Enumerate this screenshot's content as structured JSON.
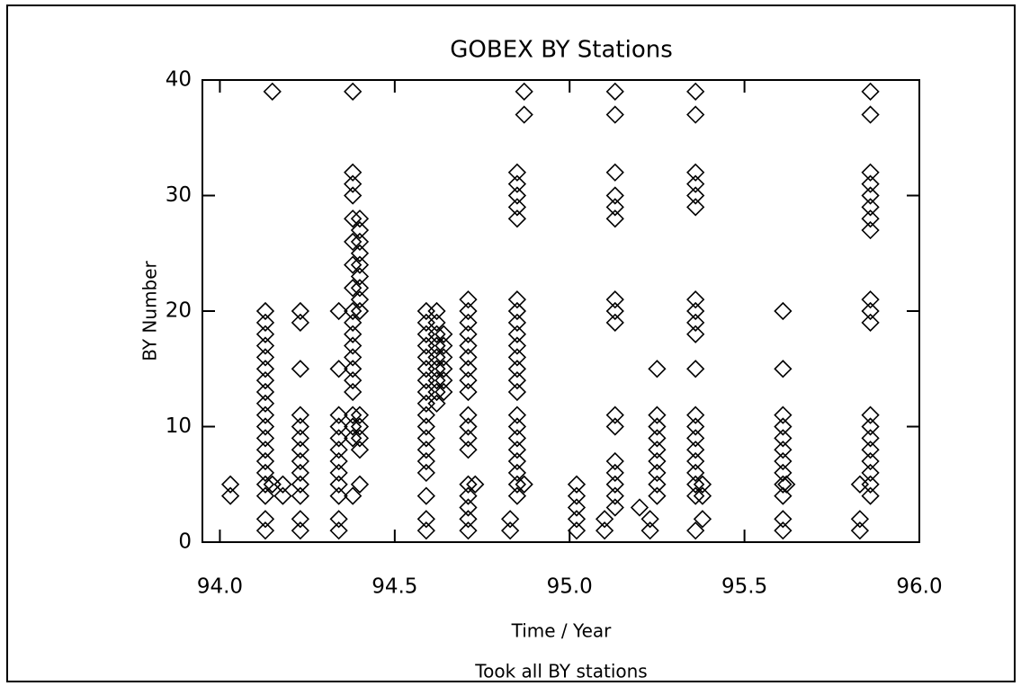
{
  "chart_data": {
    "type": "scatter",
    "title": "GOBEX BY Stations",
    "xlabel": "Time / Year",
    "ylabel": "BY Number",
    "footnote": "Took all BY stations",
    "x": [
      94.03,
      94.03,
      94.13,
      94.13,
      94.13,
      94.13,
      94.13,
      94.13,
      94.13,
      94.13,
      94.13,
      94.13,
      94.13,
      94.13,
      94.13,
      94.13,
      94.13,
      94.13,
      94.13,
      94.13,
      94.13,
      94.15,
      94.15,
      94.18,
      94.18,
      94.23,
      94.23,
      94.23,
      94.23,
      94.23,
      94.23,
      94.23,
      94.23,
      94.23,
      94.23,
      94.23,
      94.23,
      94.23,
      94.34,
      94.34,
      94.34,
      94.34,
      94.34,
      94.34,
      94.34,
      94.34,
      94.34,
      94.34,
      94.34,
      94.34,
      94.38,
      94.38,
      94.38,
      94.38,
      94.38,
      94.38,
      94.38,
      94.38,
      94.38,
      94.38,
      94.38,
      94.38,
      94.38,
      94.38,
      94.38,
      94.38,
      94.38,
      94.38,
      94.38,
      94.38,
      94.4,
      94.4,
      94.4,
      94.4,
      94.4,
      94.4,
      94.4,
      94.4,
      94.4,
      94.4,
      94.4,
      94.4,
      94.4,
      94.4,
      94.59,
      94.59,
      94.59,
      94.59,
      94.59,
      94.59,
      94.59,
      94.59,
      94.59,
      94.59,
      94.59,
      94.59,
      94.59,
      94.59,
      94.59,
      94.59,
      94.59,
      94.59,
      94.62,
      94.62,
      94.62,
      94.62,
      94.62,
      94.62,
      94.62,
      94.62,
      94.62,
      94.64,
      94.64,
      94.64,
      94.64,
      94.64,
      94.64,
      94.71,
      94.71,
      94.71,
      94.71,
      94.71,
      94.71,
      94.71,
      94.71,
      94.71,
      94.71,
      94.71,
      94.71,
      94.71,
      94.71,
      94.71,
      94.71,
      94.71,
      94.71,
      94.73,
      94.83,
      94.83,
      94.85,
      94.85,
      94.85,
      94.85,
      94.85,
      94.85,
      94.85,
      94.85,
      94.85,
      94.85,
      94.85,
      94.85,
      94.85,
      94.85,
      94.85,
      94.85,
      94.85,
      94.85,
      94.85,
      94.85,
      94.85,
      94.85,
      94.87,
      94.87,
      94.87,
      95.02,
      95.02,
      95.02,
      95.02,
      95.02,
      95.1,
      95.1,
      95.13,
      95.13,
      95.13,
      95.13,
      95.13,
      95.13,
      95.13,
      95.13,
      95.13,
      95.13,
      95.13,
      95.13,
      95.13,
      95.13,
      95.13,
      95.13,
      95.2,
      95.23,
      95.23,
      95.25,
      95.25,
      95.25,
      95.25,
      95.25,
      95.25,
      95.25,
      95.25,
      95.25,
      95.36,
      95.36,
      95.36,
      95.36,
      95.36,
      95.36,
      95.36,
      95.36,
      95.36,
      95.36,
      95.36,
      95.36,
      95.36,
      95.36,
      95.36,
      95.36,
      95.36,
      95.36,
      95.36,
      95.36,
      95.38,
      95.38,
      95.38,
      95.61,
      95.61,
      95.61,
      95.61,
      95.61,
      95.61,
      95.61,
      95.61,
      95.61,
      95.61,
      95.61,
      95.61,
      95.62,
      95.83,
      95.83,
      95.83,
      95.86,
      95.86,
      95.86,
      95.86,
      95.86,
      95.86,
      95.86,
      95.86,
      95.86,
      95.86,
      95.86,
      95.86,
      95.86,
      95.86,
      95.86,
      95.86,
      95.86,
      95.86,
      95.86
    ],
    "values": [
      4,
      5,
      1,
      2,
      4,
      5,
      6,
      7,
      8,
      9,
      10,
      11,
      12,
      13,
      14,
      15,
      16,
      17,
      18,
      19,
      20,
      39,
      5,
      4,
      5,
      1,
      2,
      4,
      5,
      6,
      7,
      8,
      9,
      10,
      11,
      15,
      19,
      20,
      1,
      2,
      4,
      5,
      6,
      7,
      8,
      9,
      10,
      11,
      15,
      20,
      39,
      4,
      9,
      10,
      11,
      13,
      14,
      15,
      16,
      17,
      18,
      19,
      20,
      22,
      24,
      26,
      28,
      30,
      31,
      32,
      5,
      8,
      9,
      10,
      11,
      20,
      21,
      22,
      23,
      24,
      25,
      26,
      27,
      28,
      1,
      2,
      4,
      6,
      7,
      8,
      9,
      10,
      11,
      12,
      13,
      14,
      15,
      16,
      17,
      18,
      19,
      20,
      12,
      13,
      14,
      15,
      16,
      17,
      18,
      19,
      20,
      13,
      14,
      15,
      16,
      17,
      18,
      1,
      2,
      3,
      4,
      5,
      8,
      9,
      10,
      11,
      13,
      14,
      15,
      16,
      17,
      18,
      19,
      20,
      21,
      5,
      1,
      2,
      4,
      5,
      6,
      7,
      8,
      9,
      10,
      11,
      13,
      14,
      15,
      16,
      17,
      18,
      19,
      20,
      21,
      28,
      29,
      30,
      31,
      32,
      5,
      37,
      39,
      1,
      2,
      3,
      4,
      5,
      1,
      2,
      3,
      4,
      5,
      6,
      7,
      10,
      11,
      19,
      20,
      21,
      28,
      29,
      30,
      32,
      37,
      39,
      3,
      1,
      2,
      4,
      5,
      6,
      7,
      8,
      9,
      10,
      11,
      15,
      1,
      4,
      5,
      6,
      7,
      8,
      9,
      10,
      11,
      15,
      18,
      19,
      20,
      21,
      29,
      30,
      31,
      32,
      37,
      39,
      2,
      4,
      5,
      1,
      2,
      4,
      5,
      6,
      7,
      8,
      9,
      10,
      11,
      15,
      20,
      5,
      1,
      2,
      5,
      4,
      5,
      6,
      7,
      8,
      9,
      10,
      11,
      19,
      20,
      21,
      27,
      28,
      29,
      30,
      31,
      32,
      37,
      39
    ],
    "color": "#000000",
    "marker": "diamond",
    "xlim": [
      93.95,
      96.0
    ],
    "xticks": [
      {
        "value": 94,
        "label": "94.0"
      },
      {
        "value": 94.5,
        "label": "94.5"
      },
      {
        "value": 95,
        "label": "95.0"
      },
      {
        "value": 95.5,
        "label": "95.5"
      },
      {
        "value": 96,
        "label": "96.0"
      }
    ],
    "ylim": [
      0,
      40
    ],
    "yticks": [
      0,
      10,
      20,
      30,
      40
    ],
    "grid": false
  }
}
